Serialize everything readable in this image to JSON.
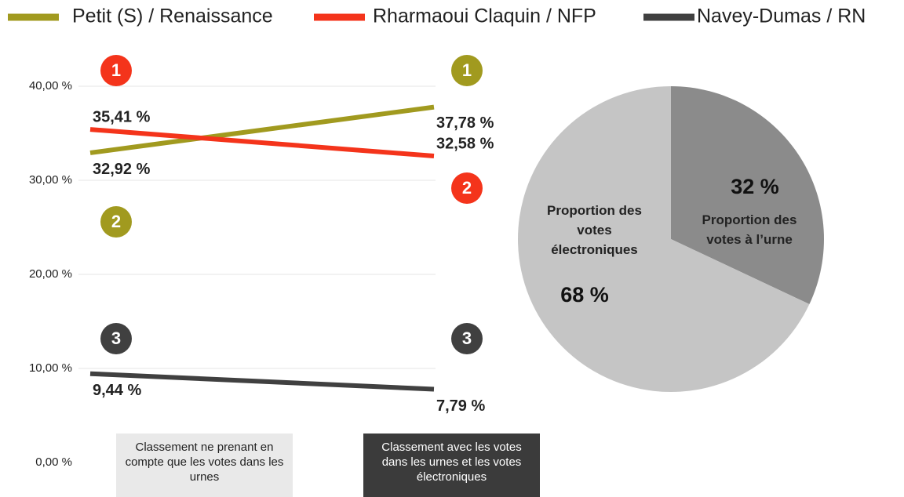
{
  "chart_data": [
    {
      "type": "line",
      "categories": [
        "Classement ne prenant en compte que les votes dans les urnes",
        "Classement avec les votes dans les urnes et les votes électroniques"
      ],
      "series": [
        {
          "name": "Petit (S) / Renaissance",
          "color": "#a19a1f",
          "values": [
            32.92,
            37.78
          ],
          "value_labels": [
            "32,92 %",
            "37,78 %"
          ],
          "ranks": [
            2,
            1
          ]
        },
        {
          "name": "Rharmaoui Claquin / NFP",
          "color": "#f4341b",
          "values": [
            35.41,
            32.58
          ],
          "value_labels": [
            "35,41 %",
            "32,58 %"
          ],
          "ranks": [
            1,
            2
          ]
        },
        {
          "name": "Navey-Dumas / RN",
          "color": "#404040",
          "values": [
            9.44,
            7.79
          ],
          "value_labels": [
            "9,44 %",
            "7,79 %"
          ],
          "ranks": [
            3,
            3
          ]
        }
      ],
      "ylim": [
        0,
        40
      ],
      "yticks": [
        {
          "value": 0,
          "label": "0,00 %"
        },
        {
          "value": 10,
          "label": "10,00 %"
        },
        {
          "value": 20,
          "label": "20,00 %"
        },
        {
          "value": 30,
          "label": "30,00 %"
        },
        {
          "value": 40,
          "label": "40,00 %"
        }
      ],
      "grid": true
    },
    {
      "type": "pie",
      "categories": [
        "Proportion des votes à l’urne",
        "Proportion des votes électroniques"
      ],
      "values": [
        32,
        68
      ],
      "value_labels": [
        "32 %",
        "68 %"
      ],
      "colors": [
        "#8b8b8b",
        "#c5c5c5"
      ]
    }
  ]
}
